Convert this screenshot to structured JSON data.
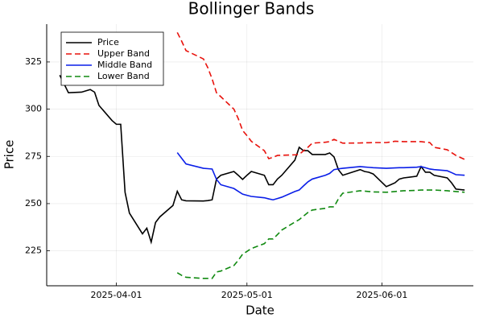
{
  "chart_data": {
    "type": "line",
    "title": "Bollinger Bands",
    "x_label": "Date",
    "y_label": "Price",
    "x": [
      "2025-03-19",
      "2025-03-21",
      "2025-03-24",
      "2025-03-26",
      "2025-03-27",
      "2025-03-28",
      "2025-03-31",
      "2025-04-01",
      "2025-04-02",
      "2025-04-03",
      "2025-04-04",
      "2025-04-07",
      "2025-04-08",
      "2025-04-09",
      "2025-04-10",
      "2025-04-11",
      "2025-04-14",
      "2025-04-15",
      "2025-04-16",
      "2025-04-17",
      "2025-04-21",
      "2025-04-22",
      "2025-04-23",
      "2025-04-24",
      "2025-04-25",
      "2025-04-28",
      "2025-04-29",
      "2025-04-30",
      "2025-05-01",
      "2025-05-02",
      "2025-05-05",
      "2025-05-06",
      "2025-05-07",
      "2025-05-08",
      "2025-05-09",
      "2025-05-12",
      "2025-05-13",
      "2025-05-14",
      "2025-05-15",
      "2025-05-16",
      "2025-05-19",
      "2025-05-20",
      "2025-05-21",
      "2025-05-22",
      "2025-05-23",
      "2025-05-27",
      "2025-05-28",
      "2025-05-29",
      "2025-05-30",
      "2025-06-02",
      "2025-06-03",
      "2025-06-04",
      "2025-06-05",
      "2025-06-06",
      "2025-06-09",
      "2025-06-10",
      "2025-06-11",
      "2025-06-12",
      "2025-06-13",
      "2025-06-16",
      "2025-06-17",
      "2025-06-18",
      "2025-06-20"
    ],
    "series": [
      {
        "name": "Price",
        "color": "#000000",
        "dash": false,
        "values": [
          318,
          308.7,
          309,
          310.4,
          309,
          302,
          294,
          292,
          292,
          256,
          245,
          234,
          237,
          229.6,
          240,
          243,
          249,
          256.5,
          252,
          251.5,
          251.4,
          251.6,
          252,
          263,
          265,
          267,
          265,
          262.8,
          265,
          267,
          265,
          260,
          260,
          263,
          265,
          273,
          279.8,
          278,
          278,
          276,
          276,
          276.8,
          274.7,
          268,
          265,
          268,
          267,
          266.6,
          265.7,
          259,
          260,
          261,
          263,
          263.6,
          264.5,
          269.6,
          266.6,
          266.6,
          265,
          263.6,
          261,
          257.7,
          257.2
        ]
      },
      {
        "name": "Upper Band",
        "color": "#e8120c",
        "dash": true,
        "values": [
          null,
          null,
          null,
          null,
          null,
          null,
          null,
          null,
          null,
          null,
          null,
          null,
          null,
          null,
          null,
          null,
          null,
          340.6,
          336,
          331,
          326.6,
          322,
          316,
          308.7,
          306.6,
          300,
          295,
          288.7,
          286,
          283,
          278,
          273.8,
          274.5,
          275.5,
          275.6,
          275.8,
          276,
          278,
          279.8,
          282,
          282.5,
          282.8,
          284,
          283,
          282,
          282.1,
          282.2,
          282.2,
          282.3,
          282.3,
          282.6,
          283,
          282.9,
          282.8,
          282.8,
          282.8,
          282.5,
          282.3,
          279.8,
          278.5,
          277,
          275.5,
          273.4
        ]
      },
      {
        "name": "Middle Band",
        "color": "#0a1ee8",
        "dash": false,
        "values": [
          null,
          null,
          null,
          null,
          null,
          null,
          null,
          null,
          null,
          null,
          null,
          null,
          null,
          null,
          null,
          null,
          null,
          277,
          274,
          271,
          268.7,
          268.5,
          268.3,
          262.8,
          260,
          258,
          256.5,
          255,
          254.4,
          253.8,
          253.1,
          252.5,
          252,
          252.7,
          253.4,
          256.4,
          257.2,
          259.4,
          261.5,
          263,
          265,
          266,
          268,
          268.4,
          268.7,
          269.6,
          269.4,
          269.2,
          269,
          268.7,
          268.8,
          268.9,
          269,
          269,
          269.3,
          269.6,
          269,
          268.3,
          268,
          267.4,
          266.4,
          265.3,
          265
        ]
      },
      {
        "name": "Lower Band",
        "color": "#118a11",
        "dash": true,
        "values": [
          null,
          null,
          null,
          null,
          null,
          null,
          null,
          null,
          null,
          null,
          null,
          null,
          null,
          null,
          null,
          null,
          null,
          213.4,
          212,
          211,
          210.4,
          210.4,
          210.4,
          213.8,
          214.3,
          217.2,
          220,
          223.2,
          224.7,
          226.2,
          228.8,
          231.3,
          231.3,
          233.6,
          236,
          240.2,
          241.5,
          243.4,
          245.3,
          246.6,
          247.5,
          248.3,
          248.3,
          252.5,
          255.5,
          256.8,
          256.6,
          256.4,
          256.2,
          256,
          256.2,
          256.4,
          256.6,
          256.8,
          257,
          257.2,
          257.2,
          257.2,
          257.2,
          256.8,
          256.6,
          256.4,
          256
        ]
      }
    ],
    "xlim": [
      "2025-03-16",
      "2025-06-22"
    ],
    "xticks": [
      "2025-04-01",
      "2025-05-01",
      "2025-06-01"
    ],
    "ylim": [
      206.5,
      345
    ],
    "yticks": [
      225,
      250,
      275,
      300,
      325
    ],
    "grid": true,
    "legend": "top-left"
  }
}
